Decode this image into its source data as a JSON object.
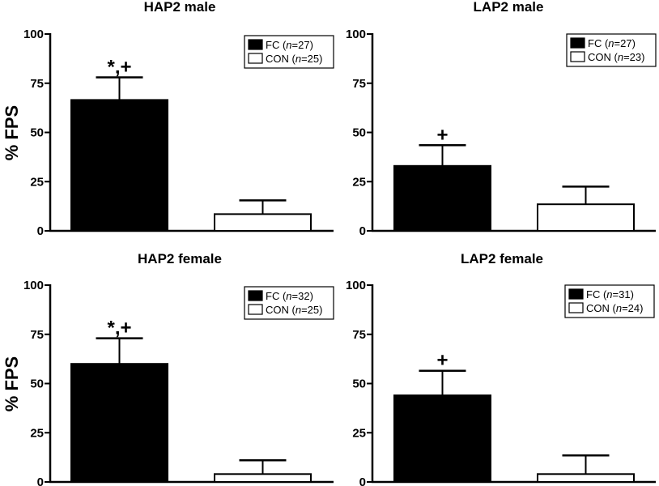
{
  "figure": {
    "ylabel": "% FPS"
  },
  "chart_data": [
    {
      "type": "bar",
      "title": "HAP2 male",
      "ylabel": "% FPS",
      "ylim": [
        0,
        100
      ],
      "yticks": [
        0,
        25,
        50,
        75,
        100
      ],
      "grid": false,
      "legend_position": "top-right",
      "categories": [
        "FC",
        "CON"
      ],
      "values": [
        66.5,
        8.5
      ],
      "errors": [
        11.5,
        7
      ],
      "fills": [
        "#000000",
        "#ffffff"
      ],
      "annotations": [
        "*,+",
        ""
      ],
      "legend": [
        {
          "label": "FC",
          "n_prefix": " (",
          "n_italic": "n",
          "n_suffix": "=27)"
        },
        {
          "label": "CON",
          "n_prefix": " (",
          "n_italic": "n",
          "n_suffix": "=25)"
        }
      ]
    },
    {
      "type": "bar",
      "title": "LAP2 male",
      "ylabel": "",
      "ylim": [
        0,
        100
      ],
      "yticks": [
        0,
        25,
        50,
        75,
        100
      ],
      "grid": false,
      "legend_position": "top-right",
      "categories": [
        "FC",
        "CON"
      ],
      "values": [
        33,
        13.5
      ],
      "errors": [
        10.5,
        9
      ],
      "fills": [
        "#000000",
        "#ffffff"
      ],
      "annotations": [
        "+",
        ""
      ],
      "legend": [
        {
          "label": "FC",
          "n_prefix": " (",
          "n_italic": "n",
          "n_suffix": "=27)"
        },
        {
          "label": "CON",
          "n_prefix": " (",
          "n_italic": "n",
          "n_suffix": "=23)"
        }
      ]
    },
    {
      "type": "bar",
      "title": "HAP2 female",
      "ylabel": "% FPS",
      "ylim": [
        0,
        100
      ],
      "yticks": [
        0,
        25,
        50,
        75,
        100
      ],
      "grid": false,
      "legend_position": "top-right",
      "categories": [
        "FC",
        "CON"
      ],
      "values": [
        60,
        4
      ],
      "errors": [
        13,
        7
      ],
      "fills": [
        "#000000",
        "#ffffff"
      ],
      "annotations": [
        "*,+",
        ""
      ],
      "legend": [
        {
          "label": "FC",
          "n_prefix": " (",
          "n_italic": "n",
          "n_suffix": "=32)"
        },
        {
          "label": "CON",
          "n_prefix": " (",
          "n_italic": "n",
          "n_suffix": "=25)"
        }
      ]
    },
    {
      "type": "bar",
      "title": "LAP2 female",
      "ylabel": "",
      "ylim": [
        0,
        100
      ],
      "yticks": [
        0,
        25,
        50,
        75,
        100
      ],
      "grid": false,
      "legend_position": "top-right",
      "categories": [
        "FC",
        "CON"
      ],
      "values": [
        44,
        4
      ],
      "errors": [
        12.5,
        9.5
      ],
      "fills": [
        "#000000",
        "#ffffff"
      ],
      "annotations": [
        "+",
        ""
      ],
      "legend": [
        {
          "label": "FC",
          "n_prefix": " (",
          "n_italic": "n",
          "n_suffix": "=31)"
        },
        {
          "label": "CON",
          "n_prefix": " (",
          "n_italic": "n",
          "n_suffix": "=24)"
        }
      ]
    }
  ]
}
